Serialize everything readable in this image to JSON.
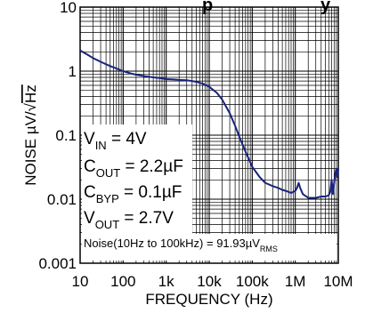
{
  "chart_data": {
    "type": "line",
    "title": "",
    "title_fragment": "p",
    "title_fragment_tail": "y",
    "xlabel": "FREQUENCY (Hz)",
    "ylabel": "NOISE µV/√Hz",
    "ylabel_main": "NOISE µV/",
    "ylabel_radical": "√",
    "ylabel_radicand": "Hz",
    "x_scale": "log",
    "y_scale": "log",
    "xlim": [
      10,
      10000000
    ],
    "ylim": [
      0.001,
      10
    ],
    "grid": true,
    "x_ticks": [
      {
        "value": 10,
        "label": "10"
      },
      {
        "value": 100,
        "label": "100"
      },
      {
        "value": 1000,
        "label": "1k"
      },
      {
        "value": 10000,
        "label": "10k"
      },
      {
        "value": 100000,
        "label": "100k"
      },
      {
        "value": 1000000,
        "label": "1M"
      },
      {
        "value": 10000000,
        "label": "10M"
      }
    ],
    "y_ticks": [
      {
        "value": 10,
        "label": "10"
      },
      {
        "value": 1,
        "label": "1"
      },
      {
        "value": 0.1,
        "label": "0.1"
      },
      {
        "value": 0.01,
        "label": "0.01"
      },
      {
        "value": 0.001,
        "label": "0.001"
      }
    ],
    "series": [
      {
        "color": "#1a237e",
        "x": [
          10,
          15,
          20,
          30,
          50,
          70,
          100,
          150,
          200,
          300,
          500,
          700,
          1000,
          1500,
          2000,
          3000,
          4000,
          5000,
          7000,
          10000,
          15000,
          20000,
          30000,
          40000,
          50000,
          70000,
          100000,
          150000,
          200000,
          300000,
          400000,
          500000,
          600000,
          700000,
          800000,
          900000,
          1000000,
          1100000,
          1200000,
          1300000,
          1500000,
          2000000,
          3000000,
          4000000,
          5000000,
          6000000,
          6500000,
          7000000,
          7500000,
          8000000,
          8500000,
          9000000,
          9500000,
          10000000
        ],
        "y": [
          2.1,
          1.8,
          1.6,
          1.4,
          1.2,
          1.1,
          1.0,
          0.92,
          0.88,
          0.84,
          0.8,
          0.78,
          0.75,
          0.74,
          0.73,
          0.72,
          0.7,
          0.68,
          0.64,
          0.57,
          0.46,
          0.36,
          0.22,
          0.14,
          0.095,
          0.055,
          0.032,
          0.022,
          0.018,
          0.016,
          0.015,
          0.014,
          0.0135,
          0.013,
          0.0125,
          0.013,
          0.0135,
          0.015,
          0.018,
          0.015,
          0.012,
          0.0105,
          0.0105,
          0.011,
          0.011,
          0.0115,
          0.013,
          0.02,
          0.012,
          0.018,
          0.025,
          0.03,
          0.022,
          0.03
        ]
      }
    ],
    "annotations": {
      "vin": {
        "main": "V",
        "sub": "IN",
        "value": " = 4V"
      },
      "cout": {
        "main": "C",
        "sub": "OUT",
        "value": " = 2.2µF"
      },
      "cbyp": {
        "main": "C",
        "sub": "BYP",
        "value": " = 0.1µF"
      },
      "vout": {
        "main": "V",
        "sub": "OUT",
        "value": " = 2.7V"
      },
      "noise": {
        "main": "Noise(10Hz to 100kHz) = 91.93µV",
        "sub": "RMS"
      }
    }
  },
  "colors": {
    "grid": "#000000",
    "curve": "#1a237e",
    "background": "#ffffff"
  }
}
